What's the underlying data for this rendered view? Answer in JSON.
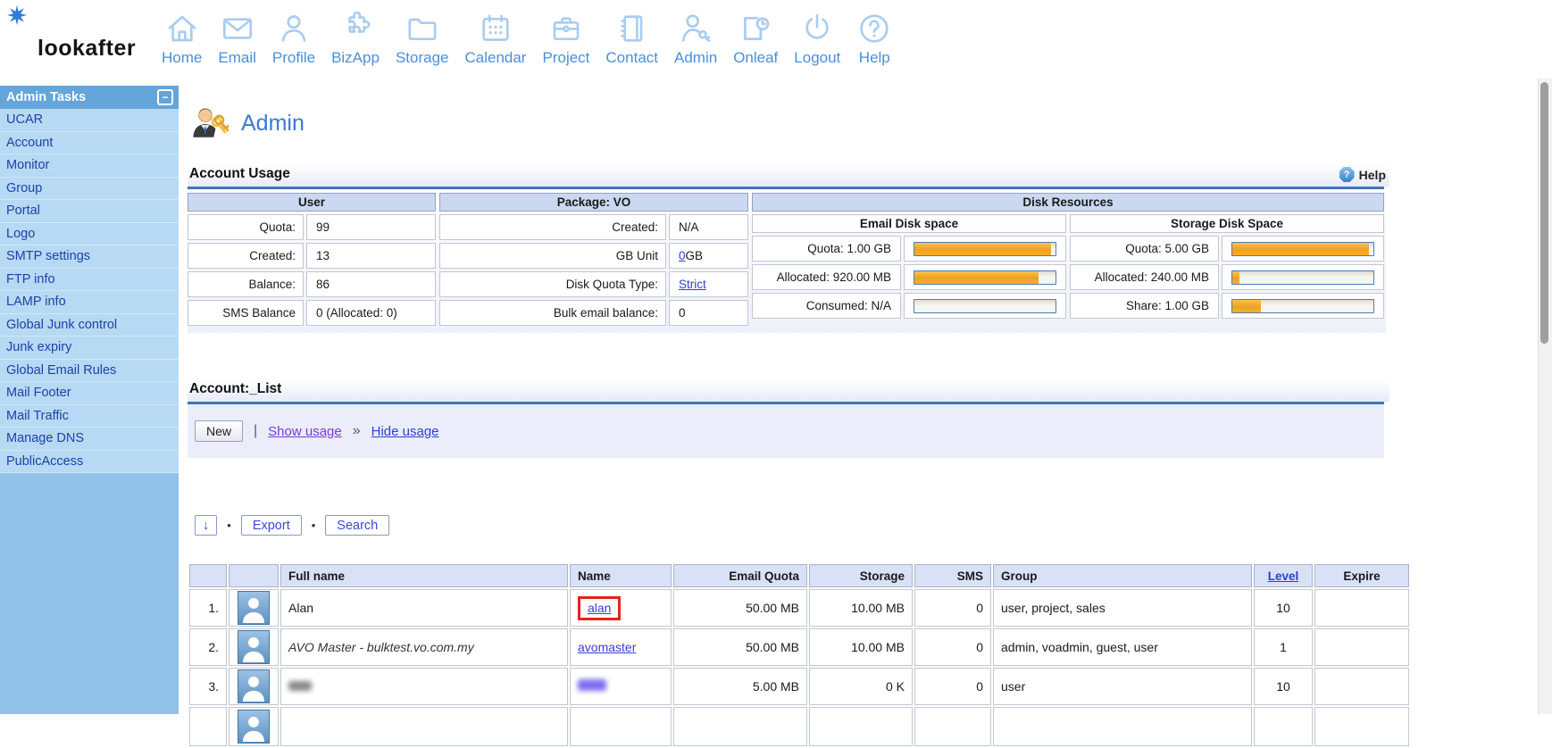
{
  "brand": {
    "logo": "lookafter"
  },
  "topnav": {
    "items": [
      {
        "label": "Home",
        "icon": "home-icon"
      },
      {
        "label": "Email",
        "icon": "envelope-icon"
      },
      {
        "label": "Profile",
        "icon": "person-icon"
      },
      {
        "label": "BizApp",
        "icon": "puzzle-icon"
      },
      {
        "label": "Storage",
        "icon": "folder-icon"
      },
      {
        "label": "Calendar",
        "icon": "calendar-icon"
      },
      {
        "label": "Project",
        "icon": "briefcase-icon"
      },
      {
        "label": "Contact",
        "icon": "notebook-icon"
      },
      {
        "label": "Admin",
        "icon": "person-key-icon"
      },
      {
        "label": "Onleaf",
        "icon": "document-clock-icon"
      },
      {
        "label": "Logout",
        "icon": "power-icon"
      },
      {
        "label": "Help",
        "icon": "question-icon"
      }
    ]
  },
  "sidebar": {
    "title": "Admin Tasks",
    "collapse_glyph": "−",
    "items": [
      "UCAR",
      "Account",
      "Monitor",
      "Group",
      "Portal",
      "Logo",
      "SMTP settings",
      "FTP info",
      "LAMP info",
      "Global Junk control",
      "Junk expiry",
      "Global Email Rules",
      "Mail Footer",
      "Mail Traffic",
      "Manage DNS",
      "PublicAccess"
    ]
  },
  "page": {
    "title": "Admin",
    "help_label": "Help",
    "help_glyph": "?"
  },
  "account_usage": {
    "title": "Account Usage",
    "groups": {
      "user": "User",
      "package": "Package: VO",
      "disk": "Disk Resources",
      "email_disk": "Email Disk space",
      "storage_disk": "Storage Disk Space"
    },
    "user_rows": [
      {
        "label": "Quota:",
        "value": "99"
      },
      {
        "label": "Created:",
        "value": "13"
      },
      {
        "label": "Balance:",
        "value": "86"
      },
      {
        "label": "SMS Balance",
        "value": "0 (Allocated: 0)"
      }
    ],
    "package_rows": [
      {
        "label": "Created:",
        "value": "N/A"
      },
      {
        "label": "GB Unit",
        "link": "0",
        "suffix": " GB"
      },
      {
        "label": "Disk Quota Type:",
        "link": "Strict"
      },
      {
        "label": "Bulk email balance:",
        "value": "0"
      }
    ],
    "email_disk_rows": [
      {
        "label": "Quota: 1.00 GB",
        "fill_pct": 97
      },
      {
        "label": "Allocated: 920.00 MB",
        "fill_pct": 88
      },
      {
        "label": "Consumed: N/A",
        "fill_pct": 0
      }
    ],
    "storage_disk_rows": [
      {
        "label": "Quota: 5.00 GB",
        "fill_pct": 97
      },
      {
        "label": "Allocated: 240.00 MB",
        "fill_pct": 5
      },
      {
        "label": "Share: 1.00 GB",
        "fill_pct": 20
      }
    ]
  },
  "account_list": {
    "title": "Account:_List",
    "actions": {
      "new": "New",
      "sep": "|",
      "show_usage": "Show usage",
      "arrow": "»",
      "hide_usage": "Hide usage"
    },
    "toolbar": {
      "download": "↓",
      "dot": "•",
      "export": "Export",
      "search": "Search"
    },
    "columns": [
      {
        "label": "",
        "align": "ctr"
      },
      {
        "label": "",
        "align": "ctr"
      },
      {
        "label": "Full name",
        "align": "lft"
      },
      {
        "label": "Name",
        "align": "lft"
      },
      {
        "label": "Email Quota",
        "align": "rgt"
      },
      {
        "label": "Storage",
        "align": "rgt"
      },
      {
        "label": "SMS",
        "align": "rgt"
      },
      {
        "label": "Group",
        "align": "lft"
      },
      {
        "label": "Level",
        "align": "ctr",
        "link": true
      },
      {
        "label": "Expire",
        "align": "ctr"
      }
    ],
    "rows": [
      {
        "num": "1.",
        "full_name": "Alan",
        "name": "alan",
        "name_highlighted": true,
        "email_quota": "50.00 MB",
        "storage": "10.00 MB",
        "sms": "0",
        "group": "user, project, sales",
        "level": "10",
        "expire": ""
      },
      {
        "num": "2.",
        "full_name": "AVO Master - bulktest.vo.com.my",
        "full_name_italic": true,
        "name": "avomaster",
        "email_quota": "50.00 MB",
        "storage": "10.00 MB",
        "sms": "0",
        "group": "admin, voadmin, guest, user",
        "level": "1",
        "expire": ""
      },
      {
        "num": "3.",
        "full_name": "",
        "name": "",
        "redacted": true,
        "email_quota": "5.00 MB",
        "storage": "0 K",
        "sms": "0",
        "group": "user",
        "level": "10",
        "expire": ""
      }
    ]
  },
  "colors": {
    "accent": "#4a8fdc",
    "icon_blue": "#a9cdf0",
    "sb_head": "#64a5da",
    "sb_item_bg": "#b7d9f3",
    "sb_item_text": "#1d41a8",
    "sb_lower": "#90c2ea",
    "rule": "#4273b8",
    "th_bg": "#cad8f1",
    "bar_border": "#4d7db3",
    "bar_fill": "#f0a832",
    "link": "#2b3fd6",
    "visited": "#7a3bd1",
    "red": "#e2251b",
    "strip": "#ebedfa"
  }
}
